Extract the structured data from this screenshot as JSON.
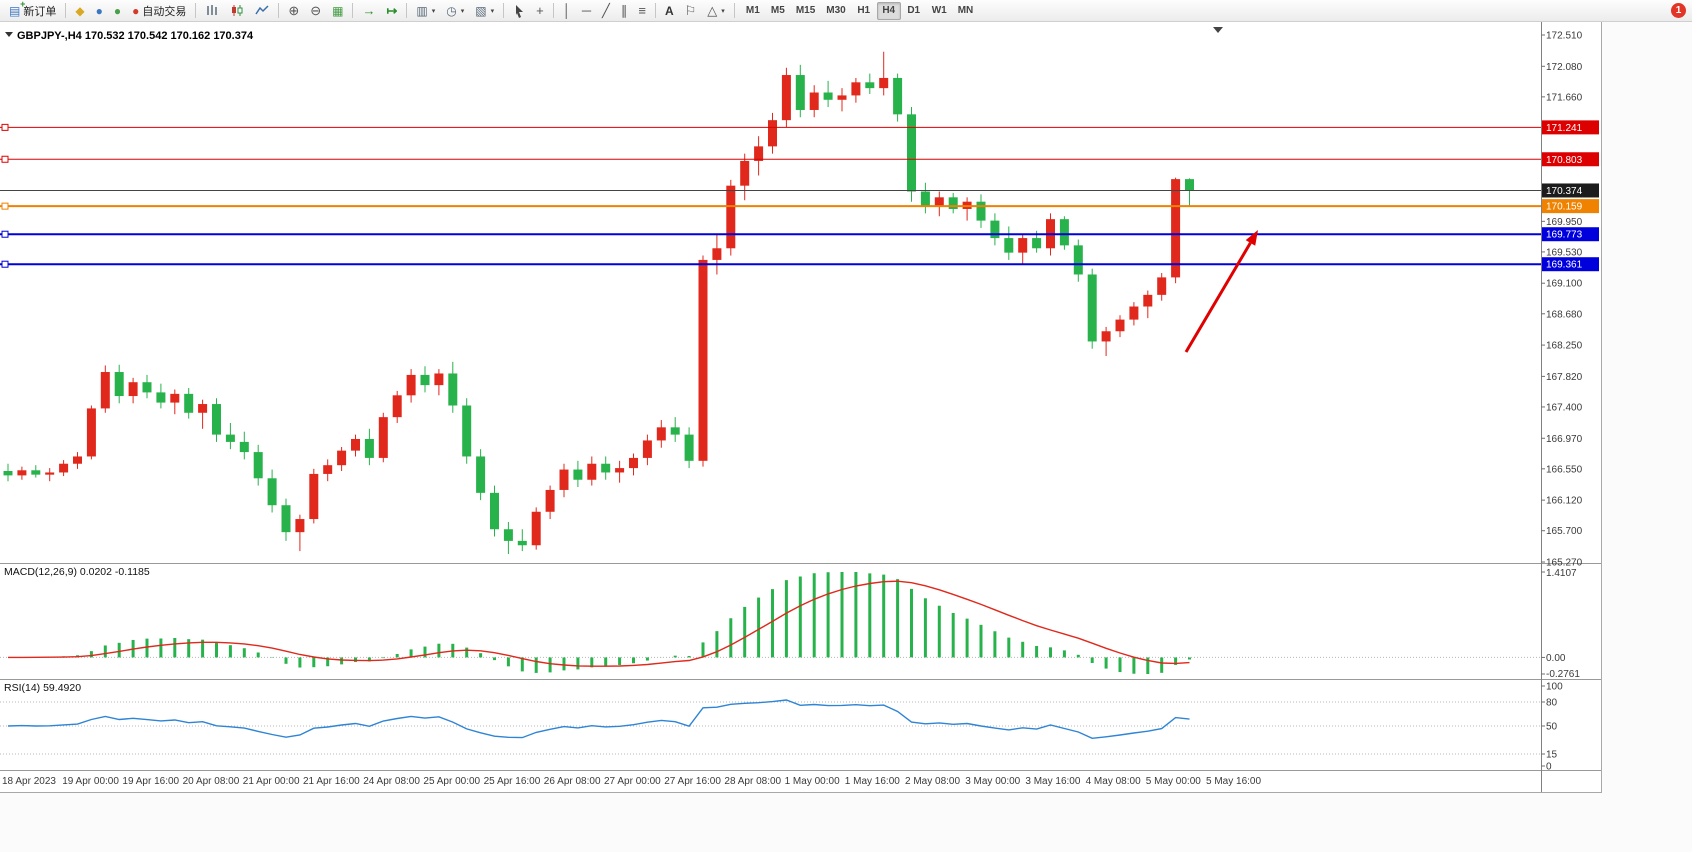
{
  "toolbar": {
    "new_order_label": "新订单",
    "auto_trading_label": "自动交易",
    "timeframes": [
      "M1",
      "M5",
      "M15",
      "M30",
      "H1",
      "H4",
      "D1",
      "W1",
      "MN"
    ],
    "active_timeframe": "H4",
    "notification_badge": "1"
  },
  "chart": {
    "title": "GBPJPY-,H4 170.532 170.542 170.162 170.374",
    "symbol": "GBPJPY-",
    "period": "H4",
    "open": "170.532",
    "high": "170.542",
    "low": "170.162",
    "close": "170.374"
  },
  "price_axis": {
    "ticks": [
      "172.510",
      "172.080",
      "171.660",
      "169.950",
      "169.530",
      "169.100",
      "168.680",
      "168.250",
      "167.820",
      "167.400",
      "166.970",
      "166.550",
      "166.120",
      "165.700",
      "165.270"
    ]
  },
  "macd_panel": {
    "label": "MACD(12,26,9) 0.0202 -0.1185",
    "axis": [
      "1.4107",
      "0.00",
      "-0.2761"
    ]
  },
  "rsi_panel": {
    "label": "RSI(14) 59.4920",
    "axis": [
      "100",
      "80",
      "50",
      "15",
      "0"
    ],
    "levels": [
      80,
      50,
      15
    ]
  },
  "time_axis": {
    "labels": [
      "18 Apr 2023",
      "19 Apr 00:00",
      "19 Apr 16:00",
      "20 Apr 08:00",
      "21 Apr 00:00",
      "21 Apr 16:00",
      "24 Apr 08:00",
      "25 Apr 00:00",
      "25 Apr 16:00",
      "26 Apr 08:00",
      "27 Apr 00:00",
      "27 Apr 16:00",
      "28 Apr 08:00",
      "1 May 00:00",
      "1 May 16:00",
      "2 May 08:00",
      "3 May 00:00",
      "3 May 16:00",
      "4 May 08:00",
      "5 May 00:00",
      "5 May 16:00"
    ]
  },
  "chart_data": {
    "type": "candlestick",
    "symbol": "GBPJPY",
    "timeframe": "H4",
    "up_color": "#e0281c",
    "down_color": "#27b24b",
    "y_range": [
      165.27,
      172.51
    ],
    "ohlc": [
      [
        166.52,
        166.62,
        166.38,
        166.46
      ],
      [
        166.46,
        166.58,
        166.4,
        166.53
      ],
      [
        166.53,
        166.6,
        166.43,
        166.47
      ],
      [
        166.47,
        166.56,
        166.38,
        166.5
      ],
      [
        166.5,
        166.67,
        166.45,
        166.62
      ],
      [
        166.62,
        166.78,
        166.55,
        166.72
      ],
      [
        166.72,
        167.42,
        166.68,
        167.38
      ],
      [
        167.38,
        167.97,
        167.32,
        167.88
      ],
      [
        167.88,
        167.98,
        167.45,
        167.55
      ],
      [
        167.55,
        167.8,
        167.45,
        167.74
      ],
      [
        167.74,
        167.84,
        167.52,
        167.6
      ],
      [
        167.6,
        167.72,
        167.38,
        167.46
      ],
      [
        167.46,
        167.64,
        167.3,
        167.58
      ],
      [
        167.58,
        167.66,
        167.24,
        167.32
      ],
      [
        167.32,
        167.5,
        167.1,
        167.44
      ],
      [
        167.44,
        167.52,
        166.92,
        167.02
      ],
      [
        167.02,
        167.18,
        166.82,
        166.92
      ],
      [
        166.92,
        167.06,
        166.68,
        166.78
      ],
      [
        166.78,
        166.88,
        166.32,
        166.42
      ],
      [
        166.42,
        166.54,
        165.95,
        166.05
      ],
      [
        166.05,
        166.14,
        165.56,
        165.68
      ],
      [
        165.68,
        165.92,
        165.42,
        165.86
      ],
      [
        165.86,
        166.55,
        165.8,
        166.48
      ],
      [
        166.48,
        166.68,
        166.38,
        166.6
      ],
      [
        166.6,
        166.85,
        166.52,
        166.8
      ],
      [
        166.8,
        167.02,
        166.72,
        166.96
      ],
      [
        166.96,
        167.1,
        166.6,
        166.7
      ],
      [
        166.7,
        167.32,
        166.64,
        167.26
      ],
      [
        167.26,
        167.62,
        167.18,
        167.56
      ],
      [
        167.56,
        167.92,
        167.46,
        167.84
      ],
      [
        167.84,
        167.96,
        167.6,
        167.7
      ],
      [
        167.7,
        167.92,
        167.56,
        167.86
      ],
      [
        167.86,
        168.02,
        167.32,
        167.42
      ],
      [
        167.42,
        167.52,
        166.62,
        166.72
      ],
      [
        166.72,
        166.82,
        166.12,
        166.22
      ],
      [
        166.22,
        166.32,
        165.62,
        165.72
      ],
      [
        165.72,
        165.82,
        165.38,
        165.56
      ],
      [
        165.56,
        165.72,
        165.42,
        165.5
      ],
      [
        165.5,
        166.02,
        165.44,
        165.96
      ],
      [
        165.96,
        166.32,
        165.86,
        166.26
      ],
      [
        166.26,
        166.62,
        166.16,
        166.54
      ],
      [
        166.54,
        166.66,
        166.3,
        166.4
      ],
      [
        166.4,
        166.72,
        166.32,
        166.62
      ],
      [
        166.62,
        166.72,
        166.4,
        166.5
      ],
      [
        166.5,
        166.66,
        166.36,
        166.56
      ],
      [
        166.56,
        166.76,
        166.46,
        166.7
      ],
      [
        166.7,
        167.02,
        166.6,
        166.94
      ],
      [
        166.94,
        167.22,
        166.84,
        167.12
      ],
      [
        167.12,
        167.26,
        166.92,
        167.02
      ],
      [
        167.02,
        167.12,
        166.56,
        166.66
      ],
      [
        166.66,
        169.48,
        166.58,
        169.42
      ],
      [
        169.42,
        169.78,
        169.22,
        169.58
      ],
      [
        169.58,
        170.52,
        169.48,
        170.44
      ],
      [
        170.44,
        170.88,
        170.24,
        170.78
      ],
      [
        170.78,
        171.12,
        170.58,
        170.98
      ],
      [
        170.98,
        171.44,
        170.88,
        171.34
      ],
      [
        171.34,
        172.06,
        171.24,
        171.96
      ],
      [
        171.96,
        172.1,
        171.38,
        171.48
      ],
      [
        171.48,
        171.82,
        171.38,
        171.72
      ],
      [
        171.72,
        171.88,
        171.52,
        171.62
      ],
      [
        171.62,
        171.78,
        171.46,
        171.68
      ],
      [
        171.68,
        171.92,
        171.58,
        171.86
      ],
      [
        171.86,
        171.98,
        171.7,
        171.78
      ],
      [
        171.78,
        172.28,
        171.68,
        171.92
      ],
      [
        171.92,
        171.98,
        171.32,
        171.42
      ],
      [
        171.42,
        171.52,
        170.22,
        170.36
      ],
      [
        170.36,
        170.48,
        170.06,
        170.16
      ],
      [
        170.16,
        170.36,
        170.02,
        170.28
      ],
      [
        170.28,
        170.34,
        170.06,
        170.12
      ],
      [
        170.12,
        170.28,
        169.96,
        170.22
      ],
      [
        170.22,
        170.32,
        169.86,
        169.96
      ],
      [
        169.96,
        170.06,
        169.62,
        169.72
      ],
      [
        169.72,
        169.88,
        169.42,
        169.52
      ],
      [
        169.52,
        169.78,
        169.36,
        169.72
      ],
      [
        169.72,
        169.82,
        169.52,
        169.58
      ],
      [
        169.58,
        170.06,
        169.48,
        169.98
      ],
      [
        169.98,
        170.02,
        169.56,
        169.62
      ],
      [
        169.62,
        169.7,
        169.12,
        169.22
      ],
      [
        169.22,
        169.3,
        168.2,
        168.3
      ],
      [
        168.3,
        168.5,
        168.1,
        168.44
      ],
      [
        168.44,
        168.66,
        168.36,
        168.6
      ],
      [
        168.6,
        168.84,
        168.52,
        168.78
      ],
      [
        168.78,
        169.0,
        168.62,
        168.94
      ],
      [
        168.94,
        169.24,
        168.86,
        169.18
      ],
      [
        169.18,
        170.55,
        169.1,
        170.53
      ],
      [
        170.53,
        170.54,
        170.16,
        170.37
      ]
    ],
    "hlines": [
      {
        "price": 171.241,
        "color": "#dd0000",
        "label": "171.241",
        "width": 1
      },
      {
        "price": 170.803,
        "color": "#dd0000",
        "label": "170.803",
        "width": 1
      },
      {
        "price": 170.159,
        "color": "#ef8200",
        "label": "170.159",
        "width": 2
      },
      {
        "price": 169.773,
        "color": "#0000dd",
        "label": "169.773",
        "width": 2
      },
      {
        "price": 169.361,
        "color": "#0000dd",
        "label": "169.361",
        "width": 2
      }
    ],
    "current_price": 170.374,
    "macd": {
      "params": [
        12,
        26,
        9
      ],
      "current_main": 0.0202,
      "current_signal": -0.1185,
      "histogram_color": "#27b24b",
      "signal_color": "#e0281c"
    },
    "rsi": {
      "period": 14,
      "current": 59.492,
      "line_color": "#2e84d5"
    },
    "annotations": [
      {
        "type": "arrow",
        "color": "#e00000",
        "direction": "up-right"
      }
    ]
  }
}
